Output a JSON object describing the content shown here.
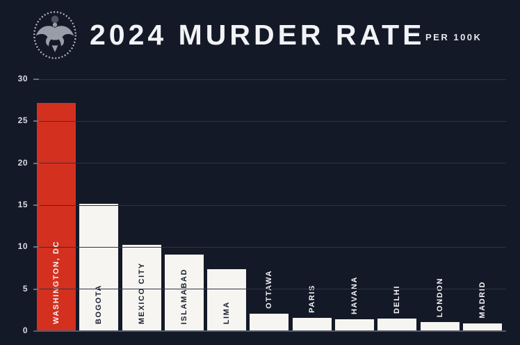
{
  "header": {
    "title": "2024 MURDER RATE",
    "subtitle": "PER 100K",
    "logo_icon": "presidential-seal-icon"
  },
  "colors": {
    "background": "#141927",
    "bar_default": "#f6f5f1",
    "bar_highlight": "#d3301f",
    "grid": "#2e3447",
    "axis_line": "#535a6c",
    "text_light": "#f2f3f6",
    "label_on_white": "#1b2030",
    "label_on_red": "#f4f5f7"
  },
  "chart_data": {
    "type": "bar",
    "title": "2024 MURDER RATE",
    "subtitle": "PER 100K",
    "categories": [
      "WASHINGTON, DC",
      "BOGOTA",
      "MEXICO CITY",
      "ISLAMABAD",
      "LIMA",
      "OTTAWA",
      "PARIS",
      "HAVANA",
      "DELHI",
      "LONDON",
      "MADRID"
    ],
    "values": [
      27.2,
      15.2,
      10.3,
      9.1,
      7.4,
      2.1,
      1.6,
      1.4,
      1.5,
      1.1,
      0.9
    ],
    "highlight_index": 0,
    "ylabel": "",
    "xlabel": "",
    "ylim": [
      0,
      30
    ],
    "yticks": [
      0,
      5,
      10,
      15,
      20,
      25,
      30
    ],
    "grid": true,
    "legend": false,
    "label_inside_threshold": 5
  }
}
